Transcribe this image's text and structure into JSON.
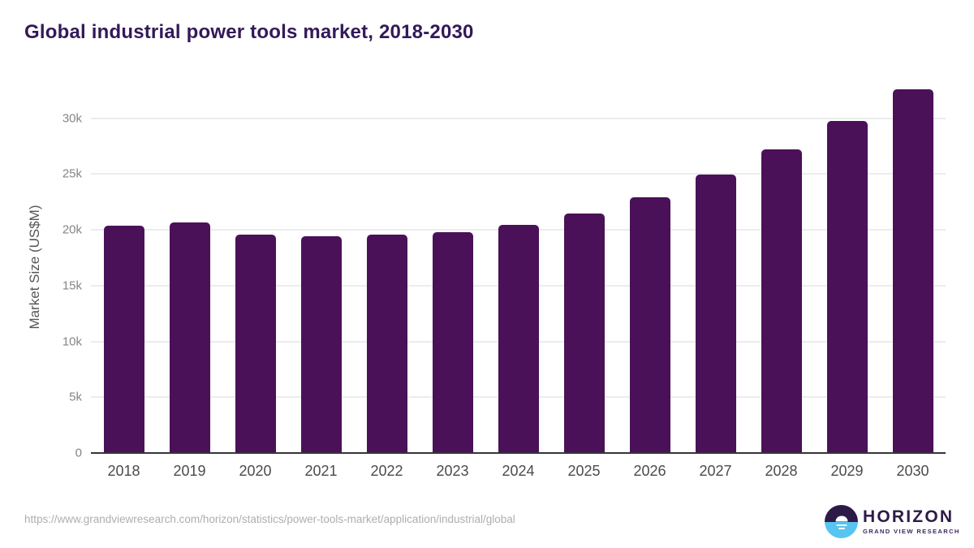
{
  "header": {
    "title": "Global industrial power tools market, 2018-2030"
  },
  "chart_data": {
    "type": "bar",
    "categories": [
      "2018",
      "2019",
      "2020",
      "2021",
      "2022",
      "2023",
      "2024",
      "2025",
      "2026",
      "2027",
      "2028",
      "2029",
      "2030"
    ],
    "values": [
      20350,
      20650,
      19550,
      19400,
      19550,
      19800,
      20480,
      21500,
      22900,
      25000,
      27200,
      29800,
      32600
    ],
    "title": "Global industrial power tools market, 2018-2030",
    "xlabel": "",
    "ylabel": "Market Size (US$M)",
    "ylim": [
      0,
      33333
    ],
    "yticks": [
      {
        "value": 0,
        "label": "0"
      },
      {
        "value": 5000,
        "label": "5k"
      },
      {
        "value": 10000,
        "label": "10k"
      },
      {
        "value": 15000,
        "label": "15k"
      },
      {
        "value": 20000,
        "label": "20k"
      },
      {
        "value": 25000,
        "label": "25k"
      },
      {
        "value": 30000,
        "label": "30k"
      }
    ],
    "grid": true,
    "legend": "none",
    "bar_color": "#4a1159"
  },
  "colors": {
    "title_text": "#33195a",
    "bar": "#4a1159",
    "gridline": "#ececee",
    "axis_line": "#35353a",
    "ytick_text": "#85858a",
    "xtick_text": "#4b4b4e",
    "footer_text": "#aeaeae",
    "logo_purple": "#2e1a47",
    "logo_blue": "#57c5f0"
  },
  "footer": {
    "source_url": "https://www.grandviewresearch.com/horizon/statistics/power-tools-market/application/industrial/global",
    "logo": {
      "name": "HORIZON",
      "tagline": "GRAND VIEW RESEARCH"
    }
  }
}
